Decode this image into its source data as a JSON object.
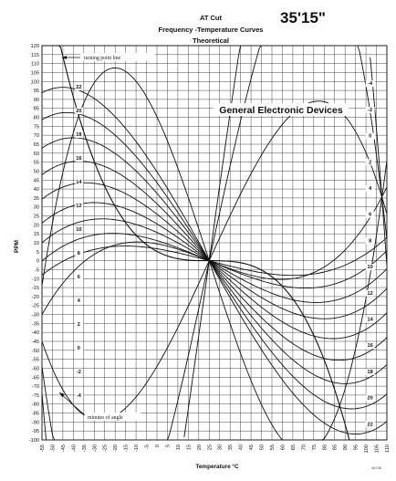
{
  "chart_data": {
    "type": "line",
    "title": "AT Cut",
    "subtitle": "Frequency -Temperature Curves",
    "subtitle2": "Theoretical",
    "cut_angle": "35'15\"",
    "brand": "General Electronic Devices",
    "xlabel": "Temperature °C",
    "ylabel": "PPM",
    "xlim": [
      -55,
      110
    ],
    "ylim": [
      -100,
      120
    ],
    "x_ticks": [
      -55,
      -50,
      -45,
      -40,
      -35,
      -30,
      -25,
      -20,
      -15,
      -10,
      -5,
      0,
      5,
      10,
      15,
      20,
      25,
      30,
      35,
      40,
      45,
      50,
      55,
      60,
      65,
      70,
      75,
      80,
      85,
      90,
      95,
      100,
      105,
      110
    ],
    "y_ticks": [
      120,
      115,
      110,
      105,
      100,
      95,
      90,
      85,
      80,
      75,
      70,
      65,
      60,
      55,
      50,
      45,
      40,
      35,
      30,
      25,
      20,
      15,
      10,
      5,
      0,
      -5,
      -10,
      -15,
      -20,
      -25,
      -30,
      -35,
      -40,
      -45,
      -50,
      -55,
      -60,
      -65,
      -70,
      -75,
      -80,
      -85,
      -90,
      -95,
      -100
    ],
    "grid": true,
    "annotations": {
      "turning_point_line": "turning point line",
      "minutes_of_angle": "minutes of angle",
      "code": "x8738"
    },
    "series": [
      {
        "name": "22",
        "values": [
          {
            "x": -40,
            "y": 96
          },
          {
            "x": 25,
            "y": 0
          },
          {
            "x": 100,
            "y": -96
          }
        ]
      },
      {
        "name": "20",
        "values": [
          {
            "x": -38,
            "y": 82
          },
          {
            "x": 25,
            "y": 0
          },
          {
            "x": 98,
            "y": -82
          }
        ]
      },
      {
        "name": "18",
        "values": [
          {
            "x": -35,
            "y": 68
          },
          {
            "x": 25,
            "y": 0
          },
          {
            "x": 95,
            "y": -68
          }
        ]
      },
      {
        "name": "16",
        "values": [
          {
            "x": -32,
            "y": 55
          },
          {
            "x": 25,
            "y": 0
          },
          {
            "x": 92,
            "y": -55
          }
        ]
      },
      {
        "name": "14",
        "values": [
          {
            "x": -29,
            "y": 43
          },
          {
            "x": 25,
            "y": 0
          },
          {
            "x": 89,
            "y": -43
          }
        ]
      },
      {
        "name": "12",
        "values": [
          {
            "x": -25,
            "y": 32
          },
          {
            "x": 25,
            "y": 0
          },
          {
            "x": 85,
            "y": -32
          }
        ]
      },
      {
        "name": "10",
        "values": [
          {
            "x": -21,
            "y": 23
          },
          {
            "x": 25,
            "y": 0
          },
          {
            "x": 81,
            "y": -23
          }
        ]
      },
      {
        "name": "8",
        "values": [
          {
            "x": -16,
            "y": 15
          },
          {
            "x": 25,
            "y": 0
          },
          {
            "x": 76,
            "y": -15
          }
        ]
      },
      {
        "name": "6",
        "values": [
          {
            "x": -10,
            "y": 8
          },
          {
            "x": 25,
            "y": 0
          },
          {
            "x": 70,
            "y": -8
          }
        ]
      },
      {
        "name": "4",
        "values": [
          {
            "x": -55,
            "y": -14
          },
          {
            "x": 25,
            "y": 0
          },
          {
            "x": 110,
            "y": 56
          }
        ]
      },
      {
        "name": "2",
        "values": [
          {
            "x": -55,
            "y": -30
          },
          {
            "x": 25,
            "y": 0
          },
          {
            "x": 110,
            "y": 41
          }
        ]
      },
      {
        "name": "0",
        "values": [
          {
            "x": -55,
            "y": -45
          },
          {
            "x": 25,
            "y": 0
          },
          {
            "x": 110,
            "y": 26
          }
        ]
      },
      {
        "name": "-2",
        "values": [
          {
            "x": -55,
            "y": -59
          },
          {
            "x": 25,
            "y": 0
          },
          {
            "x": 110,
            "y": 12
          }
        ]
      },
      {
        "name": "-4",
        "values": [
          {
            "x": -55,
            "y": -74
          },
          {
            "x": 25,
            "y": 0
          },
          {
            "x": 110,
            "y": -3
          }
        ]
      }
    ],
    "curve_labels_left": [
      "22",
      "20",
      "18",
      "16",
      "14",
      "12",
      "10",
      "8",
      "6",
      "4",
      "2",
      "0",
      "-2",
      "-4"
    ],
    "curve_labels_right": [
      "-4",
      "-2",
      "0",
      "2",
      "4",
      "6",
      "8",
      "10",
      "12",
      "14",
      "16",
      "18",
      "20",
      "22"
    ]
  }
}
